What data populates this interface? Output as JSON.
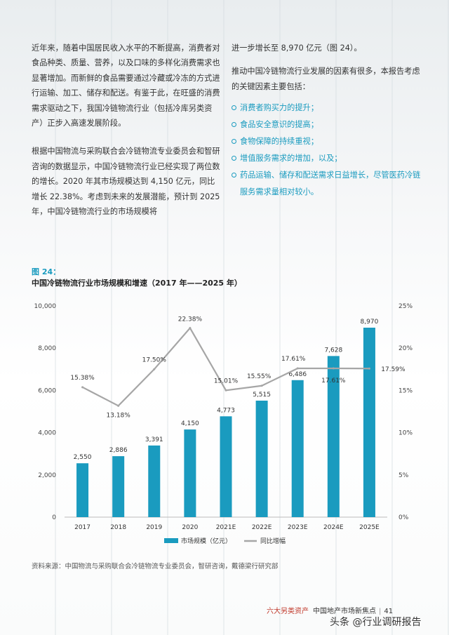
{
  "left_column": {
    "para1": "近年来，随着中国居民收入水平的不断提高，消费者对食品种类、质量、营养，以及口味的多样化消费需求也显著增加。而新鲜的食品需要通过冷藏或冷冻的方式进行运输、加工、储存和配送。有鉴于此，在旺盛的消费需求驱动之下，我国冷链物流行业（包括冷库另类资产）正步入高速发展阶段。",
    "para2": "根据中国物流与采购联合会冷链物流专业委员会和智研咨询的数据显示，中国冷链物流行业已经实现了两位数的增长。2020 年其市场规模达到 4,150 亿元，同比增长 22.38%。考虑到未来的发展潜能，预计到 2025 年，中国冷链物流行业的市场规模将"
  },
  "right_column": {
    "para1": "进一步增长至 8,970 亿元（图 24）。",
    "para2": "推动中国冷链物流行业发展的因素有很多，本报告考虑的关键因素主要包括：",
    "factors": [
      "消费者购买力的提升；",
      "食品安全意识的提高；",
      "食物保障的持续重视；",
      "增值服务需求的增加，以及；",
      "药品运输、储存和配送需求日益增长，尽管医药冷链服务需求量相对较小。"
    ]
  },
  "figure": {
    "number": "图 24：",
    "title": "中国冷链物流行业市场规模和增速（2017 年——2025 年）"
  },
  "chart_data": {
    "type": "bar",
    "categories": [
      "2017",
      "2018",
      "2019",
      "2020",
      "2021E",
      "2022E",
      "2023E",
      "2024E",
      "2025E"
    ],
    "series": [
      {
        "name": "市场规模（亿元）",
        "type": "bar",
        "values": [
          2550,
          2886,
          3391,
          4150,
          4773,
          5515,
          6486,
          7628,
          8970
        ],
        "labels": [
          "2,550",
          "2,886",
          "3,391",
          "4,150",
          "4,773",
          "5,515",
          "6,486",
          "7,628",
          "8,970"
        ]
      },
      {
        "name": "同比增幅",
        "type": "line",
        "axis": "right",
        "values": [
          15.38,
          13.18,
          17.5,
          22.38,
          15.01,
          15.55,
          17.61,
          17.61,
          17.59
        ],
        "labels": [
          "15.38%",
          "13.18%",
          "17.50%",
          "22.38%",
          "15.01%",
          "15.55%",
          "17.61%",
          "17.61%",
          "17.59%"
        ]
      }
    ],
    "left_axis": {
      "ylim": [
        0,
        10000
      ],
      "ticks": [
        "0",
        "2,000",
        "4,000",
        "6,000",
        "8,000",
        "10,000"
      ]
    },
    "right_axis": {
      "ylim": [
        0,
        25
      ],
      "ticks": [
        "0%",
        "5%",
        "10%",
        "15%",
        "20%",
        "25%"
      ]
    },
    "legend_position": "bottom",
    "colors": {
      "bar": "#1a9bbf",
      "line": "#a6a6a6"
    }
  },
  "source": "资料来源：中国物流与采购联合会冷链物流专业委员会，智研咨询，戴德梁行研究部",
  "footer": {
    "section": "六大另类资产",
    "title": "中国地产市场新焦点",
    "separator": "|",
    "page": "41"
  },
  "watermark": "头条 @行业调研报告"
}
